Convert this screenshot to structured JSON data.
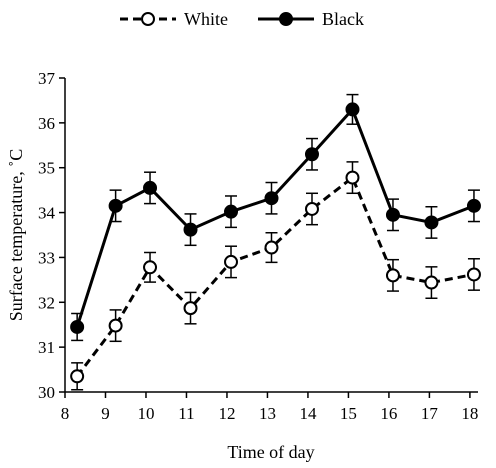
{
  "chart_data": {
    "type": "line",
    "title": "",
    "xlabel": "Time of day",
    "ylabel": "Surface temperature, ˚C",
    "xlim": [
      8,
      18.2
    ],
    "ylim": [
      30,
      37
    ],
    "x_ticks": [
      "8",
      "9",
      "10",
      "11",
      "12",
      "13",
      "14",
      "15",
      "16",
      "17",
      "18"
    ],
    "y_ticks": [
      "30",
      "31",
      "32",
      "33",
      "34",
      "35",
      "36",
      "37"
    ],
    "grid": false,
    "legend_position": "top",
    "series": [
      {
        "name": "White",
        "style": "dashed",
        "marker": "open-circle",
        "color": "#000000",
        "x": [
          8.3,
          9.25,
          10.1,
          11.1,
          12.1,
          13.1,
          14.1,
          15.1,
          16.1,
          17.05,
          18.1
        ],
        "y": [
          30.35,
          31.48,
          32.78,
          31.87,
          32.9,
          33.22,
          34.08,
          34.78,
          32.6,
          32.44,
          32.62
        ],
        "error": [
          0.3,
          0.35,
          0.33,
          0.35,
          0.35,
          0.33,
          0.35,
          0.35,
          0.35,
          0.35,
          0.35
        ]
      },
      {
        "name": "Black",
        "style": "solid",
        "marker": "filled-circle",
        "color": "#000000",
        "x": [
          8.3,
          9.25,
          10.1,
          11.1,
          12.1,
          13.1,
          14.1,
          15.1,
          16.1,
          17.05,
          18.1
        ],
        "y": [
          31.45,
          34.15,
          34.55,
          33.62,
          34.02,
          34.32,
          35.3,
          36.3,
          33.95,
          33.78,
          34.15
        ],
        "error": [
          0.3,
          0.35,
          0.35,
          0.35,
          0.35,
          0.35,
          0.35,
          0.33,
          0.35,
          0.35,
          0.35
        ]
      }
    ]
  }
}
